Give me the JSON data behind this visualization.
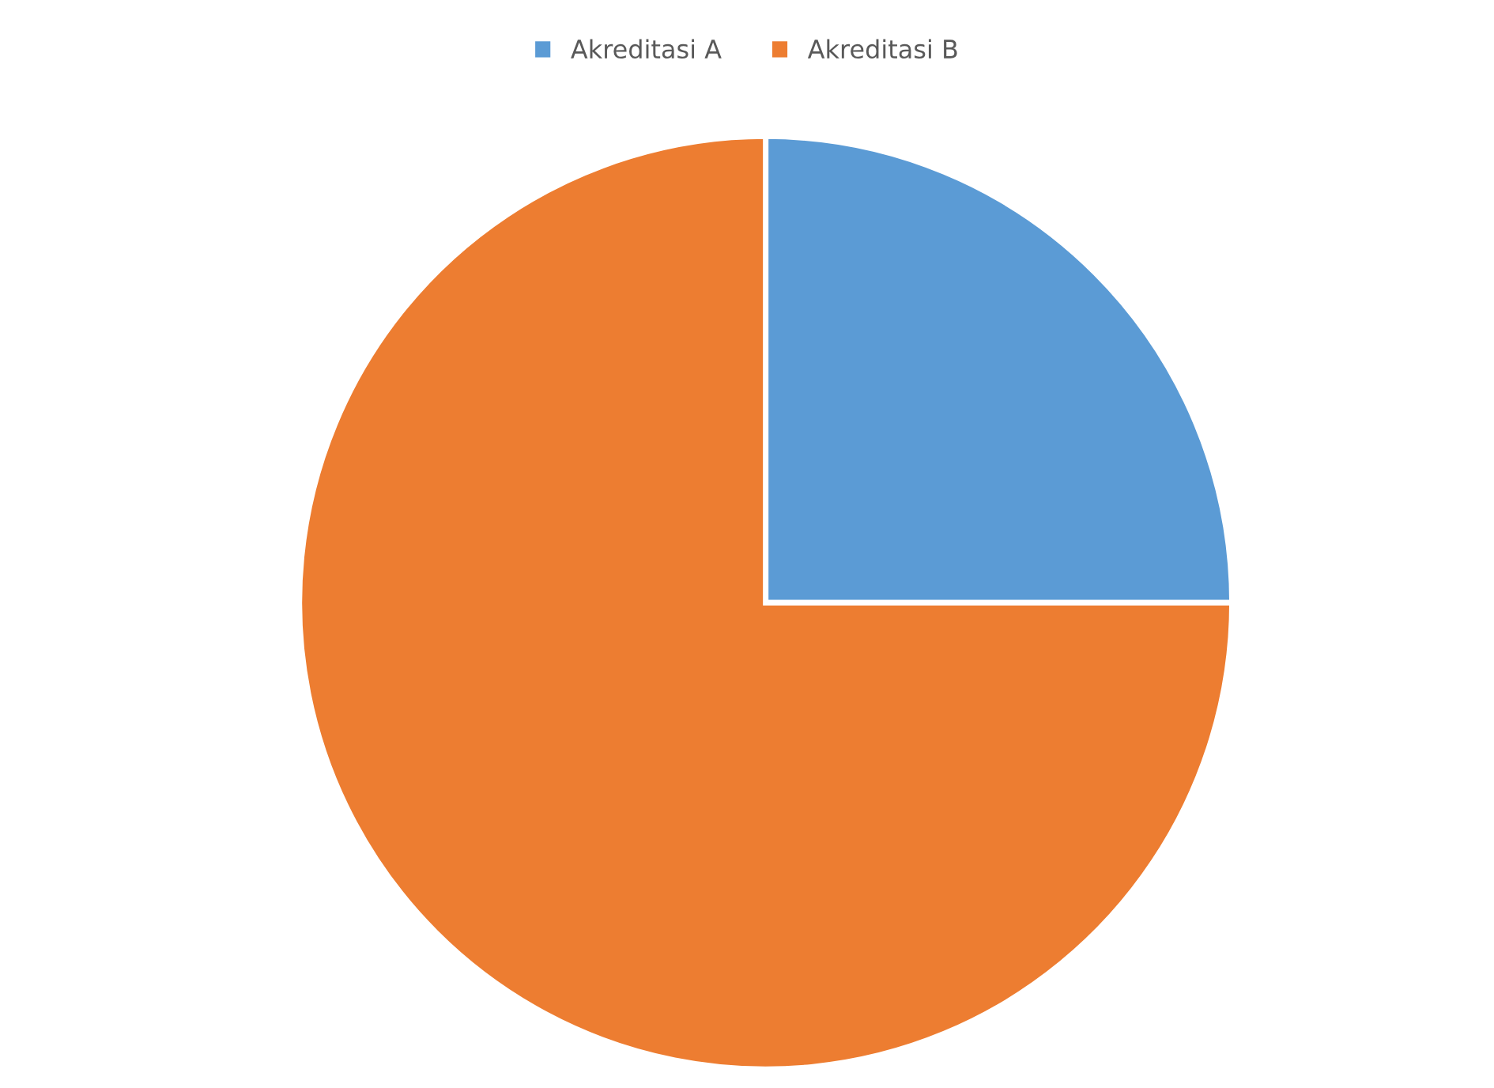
{
  "chart_data": {
    "type": "pie",
    "categories": [
      "Akreditasi A",
      "Akreditasi B"
    ],
    "values": [
      25,
      75
    ],
    "colors": [
      "#5b9bd5",
      "#ed7d31"
    ],
    "legend": "top"
  }
}
